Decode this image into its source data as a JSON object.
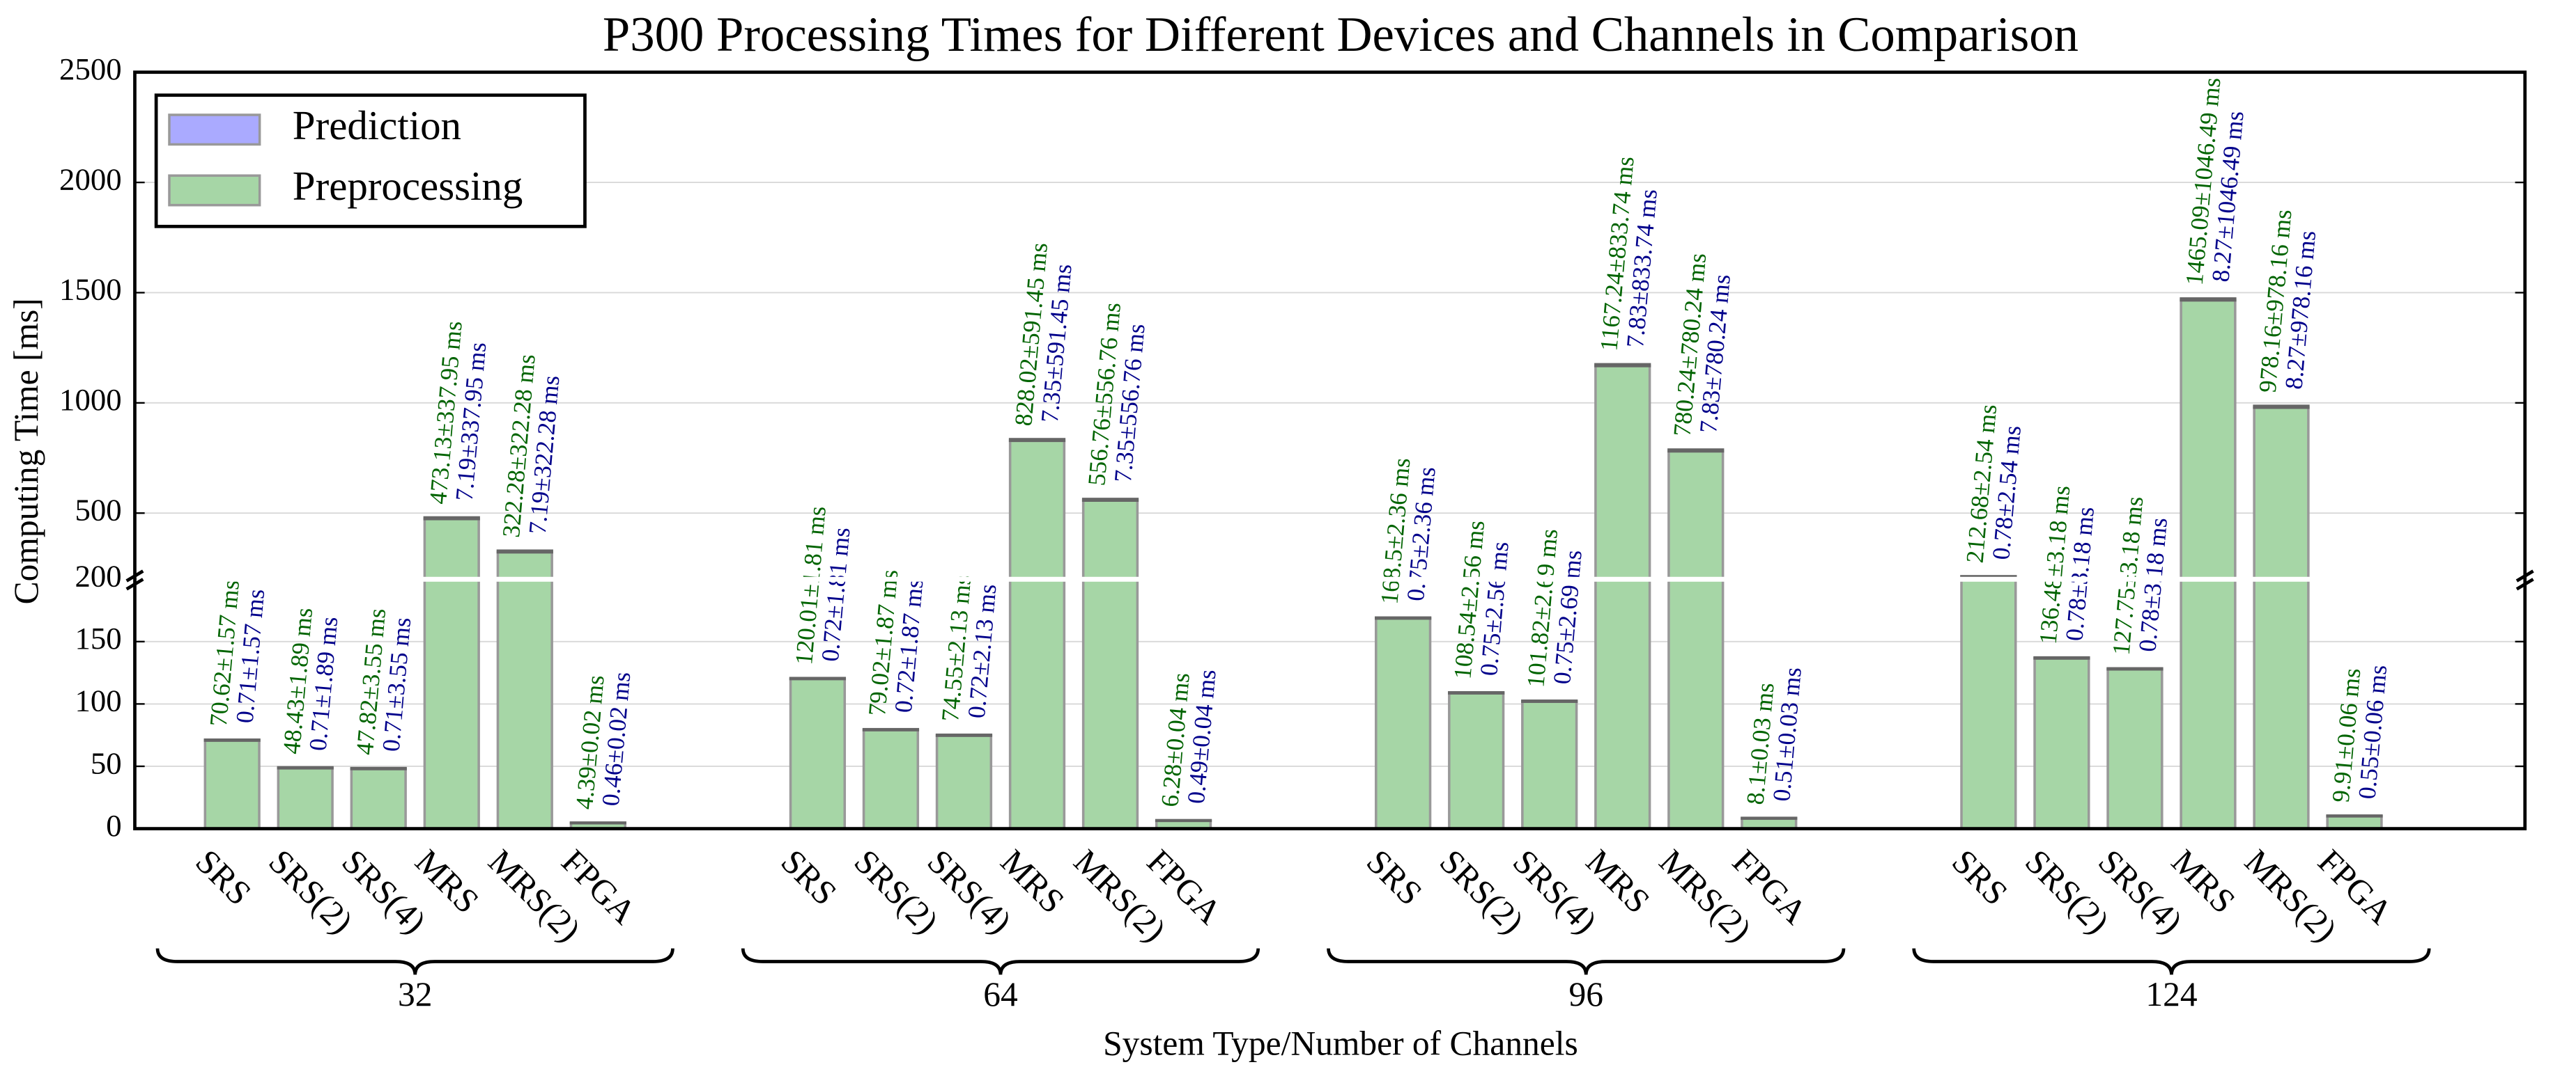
{
  "chart_data": {
    "type": "bar",
    "title": "P300 Processing Times for Different Devices and Channels in Comparison",
    "xlabel": "System Type/Number of Channels",
    "ylabel": "Computing Time [ms]",
    "groups": [
      "32",
      "64",
      "96",
      "124"
    ],
    "categories": [
      "SRS",
      "SRS(2)",
      "SRS(4)",
      "MRS",
      "MRS(2)",
      "FPGA",
      "SRS",
      "SRS(2)",
      "SRS(4)",
      "MRS",
      "MRS(2)",
      "FPGA",
      "SRS",
      "SRS(2)",
      "SRS(4)",
      "MRS",
      "MRS(2)",
      "FPGA",
      "SRS",
      "SRS(2)",
      "SRS(4)",
      "MRS",
      "MRS(2)",
      "FPGA"
    ],
    "series": [
      {
        "name": "Prediction",
        "color": "#aaaaff",
        "label_color": "#00008b",
        "values": [
          0.71,
          0.71,
          0.71,
          7.19,
          7.19,
          0.46,
          0.72,
          0.72,
          0.72,
          7.35,
          7.35,
          0.49,
          0.75,
          0.75,
          0.75,
          7.83,
          7.83,
          0.51,
          0.78,
          0.78,
          0.78,
          8.27,
          8.27,
          0.55
        ],
        "value_labels": [
          "0.71±1.57 ms",
          "0.71±1.89 ms",
          "0.71±3.55 ms",
          "7.19±337.95 ms",
          "7.19±322.28 ms",
          "0.46±0.02 ms",
          "0.72±1.81 ms",
          "0.72±1.87 ms",
          "0.72±2.13 ms",
          "7.35±591.45 ms",
          "7.35±556.76 ms",
          "0.49±0.04 ms",
          "0.75±2.36 ms",
          "0.75±2.56 ms",
          "0.75±2.69 ms",
          "7.83±833.74 ms",
          "7.83±780.24 ms",
          "0.51±0.03 ms",
          "0.78±2.54 ms",
          "0.78±3.18 ms",
          "0.78±3.18 ms",
          "8.27±1046.49 ms",
          "8.27±978.16 ms",
          "0.55±0.06 ms"
        ]
      },
      {
        "name": "Preprocessing",
        "color": "#a6d6a6",
        "label_color": "#006400",
        "values": [
          70.62,
          48.43,
          47.82,
          473.13,
          322.28,
          4.39,
          120.01,
          79.02,
          74.55,
          828.02,
          556.76,
          6.28,
          168.5,
          108.54,
          101.82,
          1167.24,
          780.24,
          8.1,
          212.68,
          136.48,
          127.75,
          1465.09,
          978.16,
          9.91
        ],
        "value_labels": [
          "70.62±1.57 ms",
          "48.43±1.89 ms",
          "47.82±3.55 ms",
          "473.13±337.95 ms",
          "322.28±322.28 ms",
          "4.39±0.02 ms",
          "120.01±1.81 ms",
          "79.02±1.87 ms",
          "74.55±2.13 ms",
          "828.02±591.45 ms",
          "556.76±556.76 ms",
          "6.28±0.04 ms",
          "168.5±2.36 ms",
          "108.54±2.56 ms",
          "101.82±2.69 ms",
          "1167.24±833.74 ms",
          "780.24±780.24 ms",
          "8.1±0.03 ms",
          "212.68±2.54 ms",
          "136.48±3.18 ms",
          "127.75±3.18 ms",
          "1465.09±1046.49 ms",
          "978.16±978.16 ms",
          "9.91±0.06 ms"
        ]
      }
    ],
    "ylim": [
      0,
      2500
    ],
    "yticks": [
      0,
      50,
      100,
      150,
      200,
      500,
      1000,
      1500,
      2000,
      2500
    ],
    "y_break": 200,
    "grid": true,
    "legend": "upper left"
  }
}
